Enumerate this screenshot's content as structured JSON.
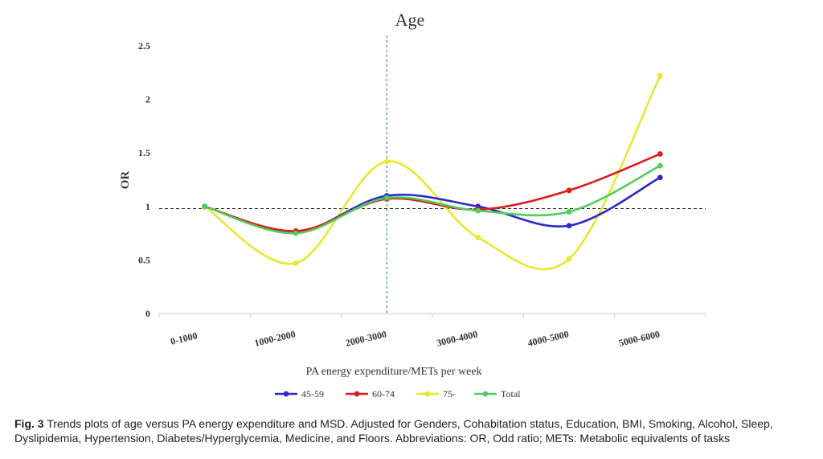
{
  "chart_data": {
    "type": "line",
    "title": "Age",
    "xlabel": "PA energy expenditure/METs per week",
    "ylabel": "OR",
    "categories": [
      "0-1000",
      "1000-2000",
      "2000-3000",
      "3000-4000",
      "4000-5000",
      "5000-6000"
    ],
    "ylim": [
      0,
      2.5
    ],
    "yticks": [
      "0",
      "0.5",
      "1",
      "1.5",
      "2",
      "2.5"
    ],
    "reference_line_y": 0.98,
    "vertical_reference_category": "2000-3000",
    "grid": false,
    "legend_position": "bottom",
    "series": [
      {
        "name": "45-59",
        "color": "#2b2bc9",
        "values": [
          1.0,
          0.76,
          1.1,
          1.0,
          0.82,
          1.27
        ]
      },
      {
        "name": "60-74",
        "color": "#e01b1b",
        "values": [
          1.0,
          0.77,
          1.07,
          0.97,
          1.15,
          1.49
        ]
      },
      {
        "name": "75-",
        "color": "#e9e92a",
        "values": [
          1.0,
          0.47,
          1.42,
          0.71,
          0.51,
          2.22
        ]
      },
      {
        "name": "Total",
        "color": "#4fcf5a",
        "values": [
          1.0,
          0.75,
          1.08,
          0.96,
          0.95,
          1.38
        ]
      }
    ]
  },
  "caption": {
    "label": "Fig. 3",
    "text": "Trends plots of age versus PA energy expenditure and MSD. Adjusted for Genders, Cohabitation status, Education, BMI, Smoking, Alcohol, Sleep, Dyslipidemia, Hypertension, Diabetes/Hyperglycemia, Medicine, and Floors. Abbreviations: OR, Odd ratio; METs: Metabolic equivalents of tasks"
  }
}
